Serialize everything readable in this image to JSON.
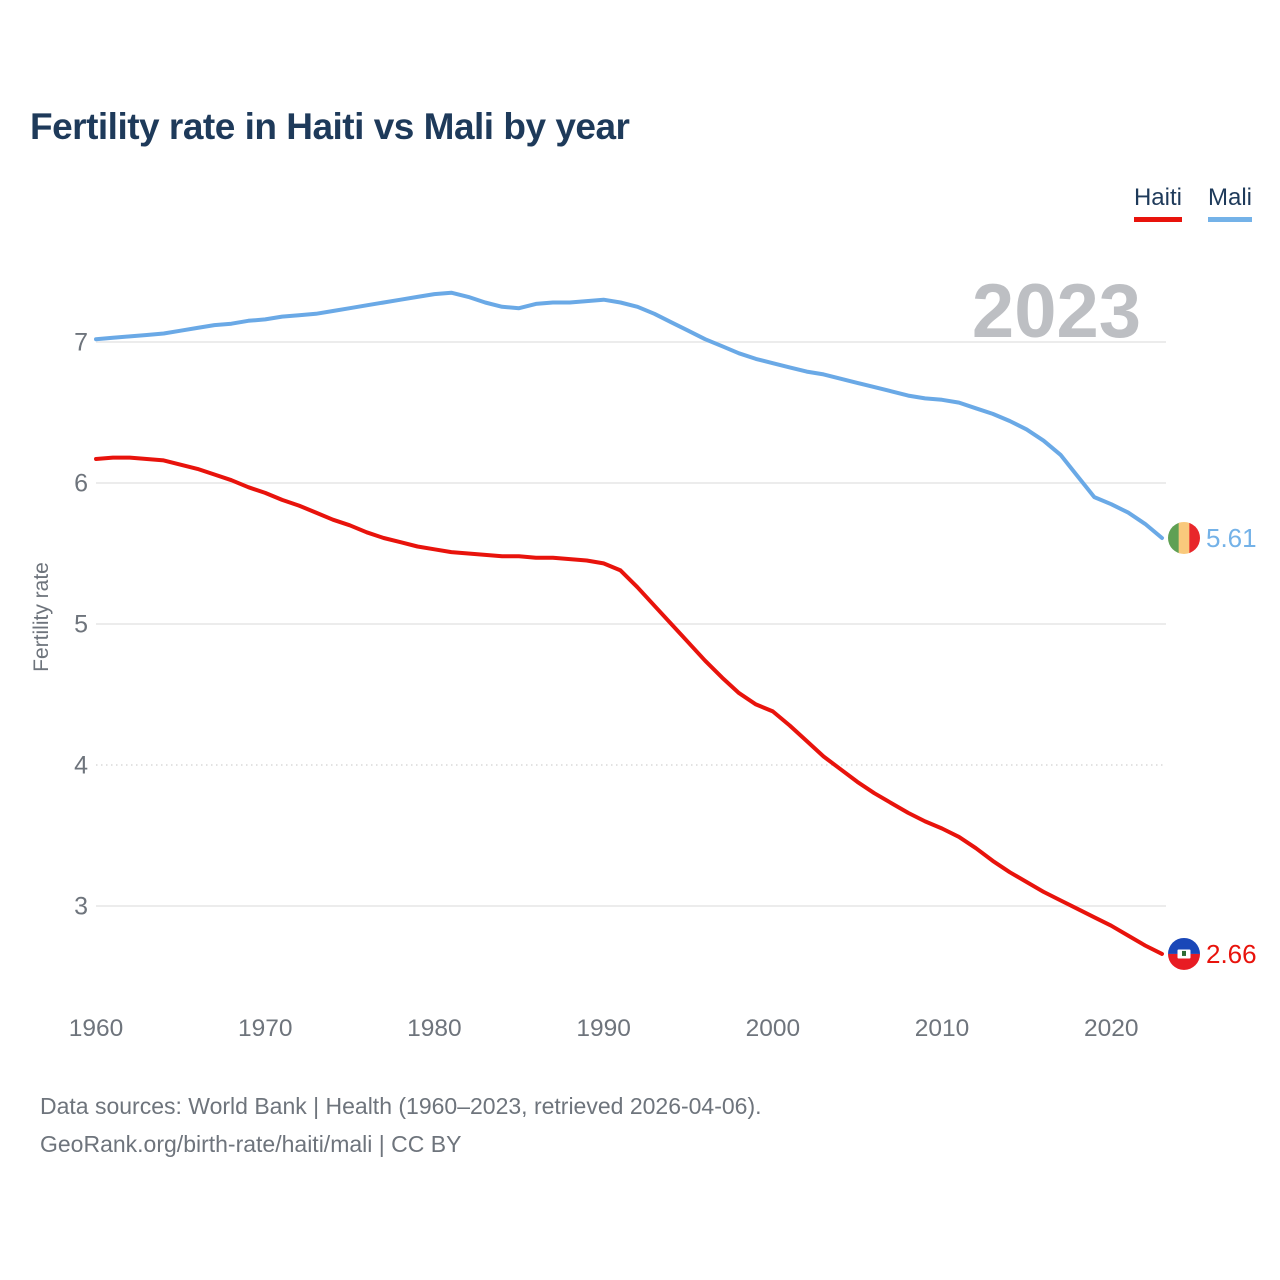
{
  "title": "Fertility rate in Haiti vs Mali by year",
  "watermark": "2023",
  "legend": [
    {
      "label": "Haiti",
      "color": "#e8130c"
    },
    {
      "label": "Mali",
      "color": "#74b2e8"
    }
  ],
  "chart_data": {
    "type": "line",
    "title": "Fertility rate in Haiti vs Mali by year",
    "xlabel": "",
    "ylabel": "Fertility rate",
    "x": [
      1960,
      1961,
      1962,
      1963,
      1964,
      1965,
      1966,
      1967,
      1968,
      1969,
      1970,
      1971,
      1972,
      1973,
      1974,
      1975,
      1976,
      1977,
      1978,
      1979,
      1980,
      1981,
      1982,
      1983,
      1984,
      1985,
      1986,
      1987,
      1988,
      1989,
      1990,
      1991,
      1992,
      1993,
      1994,
      1995,
      1996,
      1997,
      1998,
      1999,
      2000,
      2001,
      2002,
      2003,
      2004,
      2005,
      2006,
      2007,
      2008,
      2009,
      2010,
      2011,
      2012,
      2013,
      2014,
      2015,
      2016,
      2017,
      2018,
      2019,
      2020,
      2021,
      2022,
      2023
    ],
    "series": [
      {
        "name": "Haiti",
        "color": "#e8130c",
        "end_label": "2.66",
        "end_value": 2.66,
        "values": [
          6.17,
          6.18,
          6.18,
          6.17,
          6.16,
          6.13,
          6.1,
          6.06,
          6.02,
          5.97,
          5.93,
          5.88,
          5.84,
          5.79,
          5.74,
          5.7,
          5.65,
          5.61,
          5.58,
          5.55,
          5.53,
          5.51,
          5.5,
          5.49,
          5.48,
          5.48,
          5.47,
          5.47,
          5.46,
          5.45,
          5.43,
          5.38,
          5.26,
          5.13,
          5.0,
          4.87,
          4.74,
          4.62,
          4.51,
          4.43,
          4.38,
          4.28,
          4.17,
          4.06,
          3.97,
          3.88,
          3.8,
          3.73,
          3.66,
          3.6,
          3.55,
          3.49,
          3.41,
          3.32,
          3.24,
          3.17,
          3.1,
          3.04,
          2.98,
          2.92,
          2.86,
          2.79,
          2.72,
          2.66
        ]
      },
      {
        "name": "Mali",
        "color": "#6aa9e6",
        "end_label": "5.61",
        "end_value": 5.61,
        "values": [
          7.02,
          7.03,
          7.04,
          7.05,
          7.06,
          7.08,
          7.1,
          7.12,
          7.13,
          7.15,
          7.16,
          7.18,
          7.19,
          7.2,
          7.22,
          7.24,
          7.26,
          7.28,
          7.3,
          7.32,
          7.34,
          7.35,
          7.32,
          7.28,
          7.25,
          7.24,
          7.27,
          7.28,
          7.28,
          7.29,
          7.3,
          7.28,
          7.25,
          7.2,
          7.14,
          7.08,
          7.02,
          6.97,
          6.92,
          6.88,
          6.85,
          6.82,
          6.79,
          6.77,
          6.74,
          6.71,
          6.68,
          6.65,
          6.62,
          6.6,
          6.59,
          6.57,
          6.53,
          6.49,
          6.44,
          6.38,
          6.3,
          6.2,
          6.05,
          5.9,
          5.85,
          5.79,
          5.71,
          5.61
        ]
      }
    ],
    "yticks": [
      3,
      4,
      5,
      6,
      7
    ],
    "xticks": [
      1960,
      1970,
      1980,
      1990,
      2000,
      2010,
      2020
    ],
    "ylim": [
      2.45,
      7.6
    ],
    "xlim": [
      1960,
      2023
    ],
    "grid": true,
    "legend_position": "top-right"
  },
  "flags": {
    "mali": {
      "green": "#5fa054",
      "gold": "#f9c97c",
      "red": "#e8272b"
    },
    "haiti": {
      "blue": "#1a47b8",
      "red": "#e81c23",
      "emblem": "#ffffff",
      "emblem_detail": "#2f6b33"
    }
  },
  "footer": {
    "line1": "Data sources: World Bank | Health (1960–2023, retrieved 2026-04-06).",
    "line2": "GeoRank.org/birth-rate/haiti/mali | CC BY"
  }
}
